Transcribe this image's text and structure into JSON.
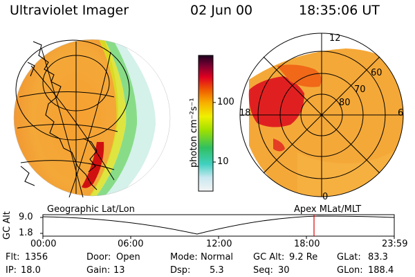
{
  "header": {
    "title": "Ultraviolet Imager",
    "date": "02 Jun 00",
    "time": "18:35:06 UT"
  },
  "colorbar": {
    "unit_label": "photon cm⁻²s⁻¹",
    "tick_100": "100",
    "tick_10": "10"
  },
  "left_panel": {
    "caption": "Geographic Lat/Lon"
  },
  "right_panel": {
    "caption": "Apex MLat/MLT",
    "mlt_12": "12",
    "mlt_18": "18",
    "mlt_6": "6",
    "mlt_0": "0",
    "lat_60": "60",
    "lat_70": "70",
    "lat_80": "80"
  },
  "altitude_plot": {
    "ylabel": "GC Alt",
    "y_top": "9.0",
    "y_bottom": "1.8",
    "x_ticks": [
      "00:00",
      "06:00",
      "12:00",
      "18:00",
      "23:59"
    ]
  },
  "status": {
    "row1": {
      "flt_label": "Flt:",
      "flt_value": "1356",
      "door_label": "Door:",
      "door_value": "Open",
      "mode_label": "Mode:",
      "mode_value": "Normal",
      "gcalt_label": "GC Alt:",
      "gcalt_value": "9.2 Re",
      "glat_label": "GLat:",
      "glat_value": "83.3"
    },
    "row2": {
      "ip_label": "IP:",
      "ip_value": "18.0",
      "gain_label": "Gain:",
      "gain_value": "13",
      "dsp_label": "Dsp:",
      "dsp_value": "5.3",
      "seq_label": "Seq:",
      "seq_value": "30",
      "glon_label": "GLon:",
      "glon_value": "188.4"
    }
  },
  "colors": {
    "marker": "#e00000",
    "background": "#ffffff"
  }
}
